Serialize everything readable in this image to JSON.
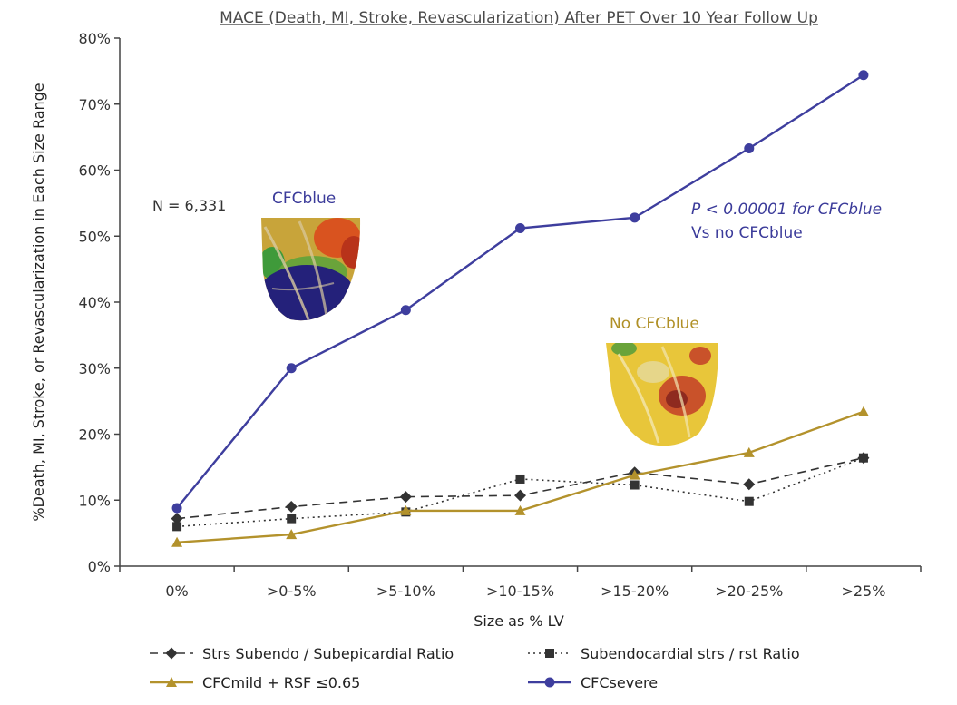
{
  "chart_data": {
    "type": "line",
    "title": "MACE (Death, MI, Stroke, Revascularization) After PET Over 10 Year Follow Up",
    "xlabel": "Size as % LV",
    "ylabel": "%Death, MI, Stroke, or Revascularization in Each Size Range",
    "categories": [
      "0%",
      ">0-5%",
      ">5-10%",
      ">10-15%",
      ">15-20%",
      ">20-25%",
      ">25%"
    ],
    "ylim": [
      0,
      80
    ],
    "yticks": [
      "0%",
      "10%",
      "20%",
      "30%",
      "40%",
      "50%",
      "60%",
      "70%",
      "80%"
    ],
    "grid": false,
    "legend_position": "bottom",
    "series": [
      {
        "name": "Strs Subendo / Subepicardial Ratio",
        "values": [
          7.2,
          9.0,
          10.5,
          10.7,
          14.2,
          12.4,
          16.4
        ],
        "color": "#333333",
        "marker": "diamond",
        "dash": "dashed"
      },
      {
        "name": "Subendocardial strs / rst Ratio",
        "values": [
          6.0,
          7.2,
          8.2,
          13.2,
          12.3,
          9.8,
          16.4
        ],
        "color": "#333333",
        "marker": "square",
        "dash": "dotted"
      },
      {
        "name": "CFCmild + RSF ≤0.65",
        "values": [
          3.6,
          4.8,
          8.4,
          8.4,
          13.8,
          17.2,
          23.4
        ],
        "color": "#b3922c",
        "marker": "triangle",
        "dash": "solid"
      },
      {
        "name": "CFCsevere",
        "values": [
          8.8,
          30.0,
          38.8,
          51.2,
          52.8,
          63.3,
          74.4
        ],
        "color": "#3e3e9e",
        "marker": "circle",
        "dash": "solid"
      }
    ],
    "annotations": {
      "n_label": "N = 6,331",
      "cfcblue_label": "CFCblue",
      "no_cfcblue_label": "No CFCblue",
      "p_value_line1": "P < 0.00001 for CFCblue",
      "p_value_line2": "Vs no CFCblue"
    }
  }
}
